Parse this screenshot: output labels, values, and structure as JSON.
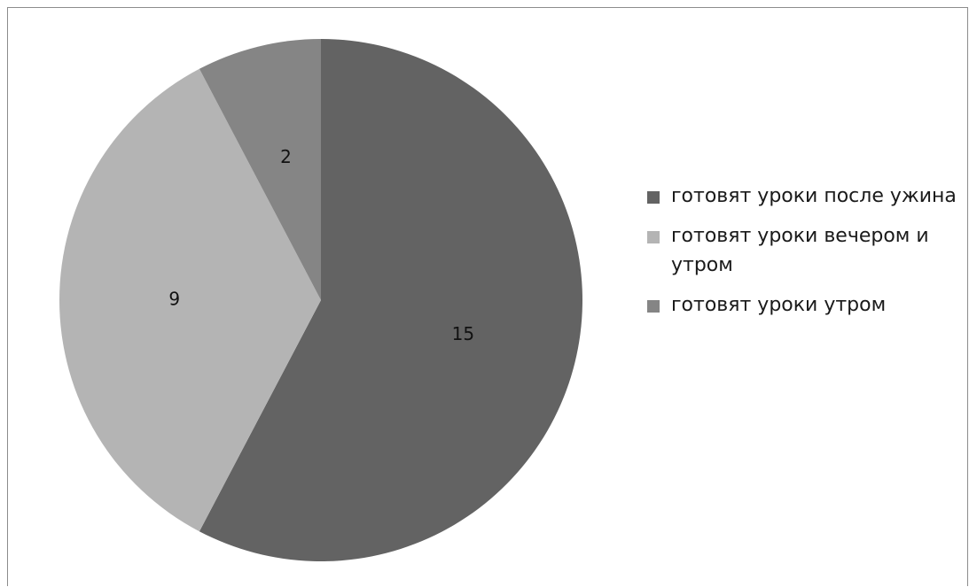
{
  "chart_data": {
    "type": "pie",
    "title": "",
    "categories": [
      "готовят уроки после ужина",
      "готовят уроки вечером и утром",
      "готовят уроки утром"
    ],
    "values": [
      15,
      9,
      2
    ],
    "data_labels": [
      "15",
      "9",
      "2"
    ],
    "colors": [
      "#636363",
      "#b4b4b4",
      "#858585"
    ],
    "start_angle_deg": 0,
    "direction": "clockwise",
    "legend_position": "right"
  }
}
